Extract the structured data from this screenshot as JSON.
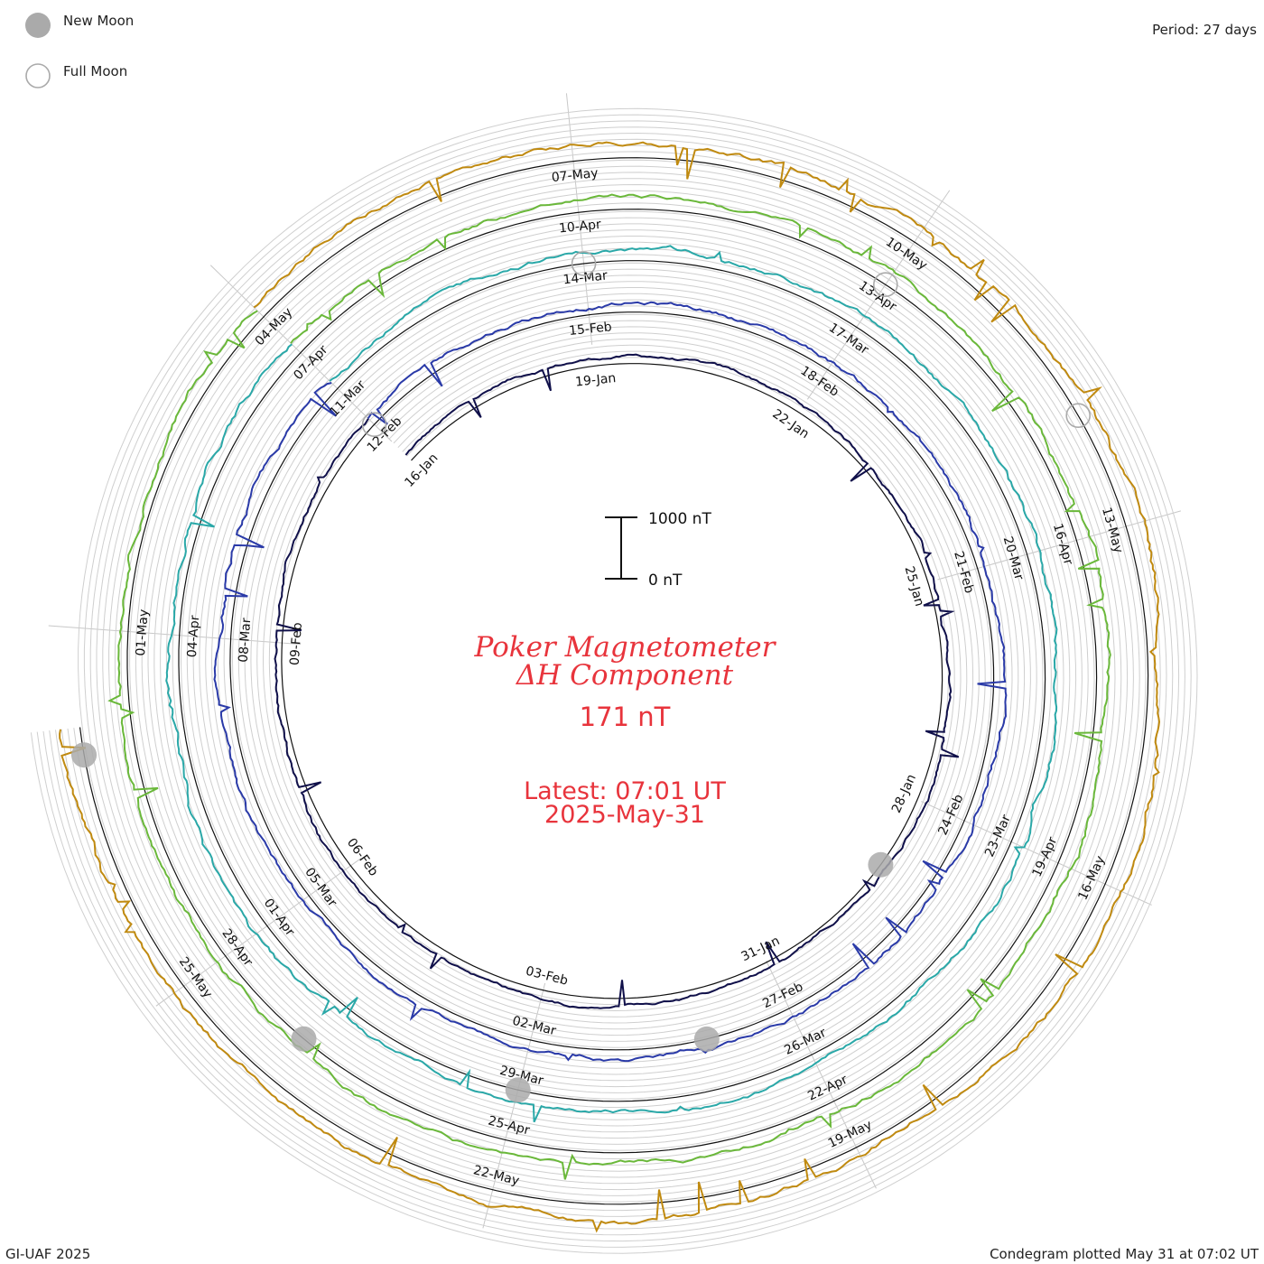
{
  "chart_data": {
    "type": "line",
    "subtype": "spiral-condegram",
    "title": "Poker Magnetometer",
    "subtitle": "ΔH Component",
    "current_value": "171 nT",
    "latest_time": "Latest: 07:01 UT",
    "latest_date": "2025-May-31",
    "period": "Period: 27 days",
    "credit": "GI-UAF 2025",
    "plotted": "Condegram plotted May 31 at 07:02 UT",
    "scale_bar": {
      "top_label": "1000 nT",
      "bottom_label": "0 nT",
      "max": 1000,
      "min": 0
    },
    "legend": [
      {
        "label": "New Moon",
        "symbol": "filled-circle",
        "color": "#aaaaaa"
      },
      {
        "label": "Full Moon",
        "symbol": "open-circle",
        "color": "#aaaaaa"
      }
    ],
    "x_unit": "date",
    "y_unit": "nT",
    "rotations": [
      {
        "start": "2025-01-16",
        "labels": [
          "16-Jan",
          "19-Jan",
          "22-Jan",
          "25-Jan",
          "28-Jan",
          "31-Jan",
          "03-Feb",
          "06-Feb",
          "09-Feb"
        ],
        "color": "#10104a",
        "level_nT": 120,
        "activity": 0.8
      },
      {
        "start": "2025-02-12",
        "labels": [
          "12-Feb",
          "15-Feb",
          "18-Feb",
          "21-Feb",
          "24-Feb",
          "27-Feb",
          "02-Mar",
          "05-Mar",
          "08-Mar"
        ],
        "color": "#2a3aa8",
        "level_nT": 150,
        "activity": 1.1
      },
      {
        "start": "2025-03-11",
        "labels": [
          "11-Mar",
          "14-Mar",
          "17-Mar",
          "20-Mar",
          "23-Mar",
          "26-Mar",
          "29-Mar",
          "01-Apr",
          "04-Apr"
        ],
        "color": "#2aa8a8",
        "level_nT": 180,
        "activity": 1.2
      },
      {
        "start": "2025-04-07",
        "labels": [
          "07-Apr",
          "10-Apr",
          "13-Apr",
          "16-Apr",
          "19-Apr",
          "22-Apr",
          "25-Apr",
          "28-Apr",
          "01-May"
        ],
        "color": "#6ab83a",
        "level_nT": 200,
        "activity": 1.3
      },
      {
        "start": "2025-05-04",
        "labels": [
          "04-May",
          "07-May",
          "10-May",
          "13-May",
          "16-May",
          "19-May",
          "22-May",
          "25-May"
        ],
        "color": "#c08a10",
        "level_nT": 230,
        "activity": 1.4
      }
    ],
    "moon_phases": [
      {
        "type": "new",
        "date": "2025-01-29"
      },
      {
        "type": "full",
        "date": "2025-02-12"
      },
      {
        "type": "new",
        "date": "2025-02-28"
      },
      {
        "type": "full",
        "date": "2025-03-14"
      },
      {
        "type": "new",
        "date": "2025-03-29"
      },
      {
        "type": "full",
        "date": "2025-04-13"
      },
      {
        "type": "new",
        "date": "2025-04-27"
      },
      {
        "type": "full",
        "date": "2025-05-12"
      },
      {
        "type": "new",
        "date": "2025-05-27"
      }
    ],
    "grid": true
  }
}
